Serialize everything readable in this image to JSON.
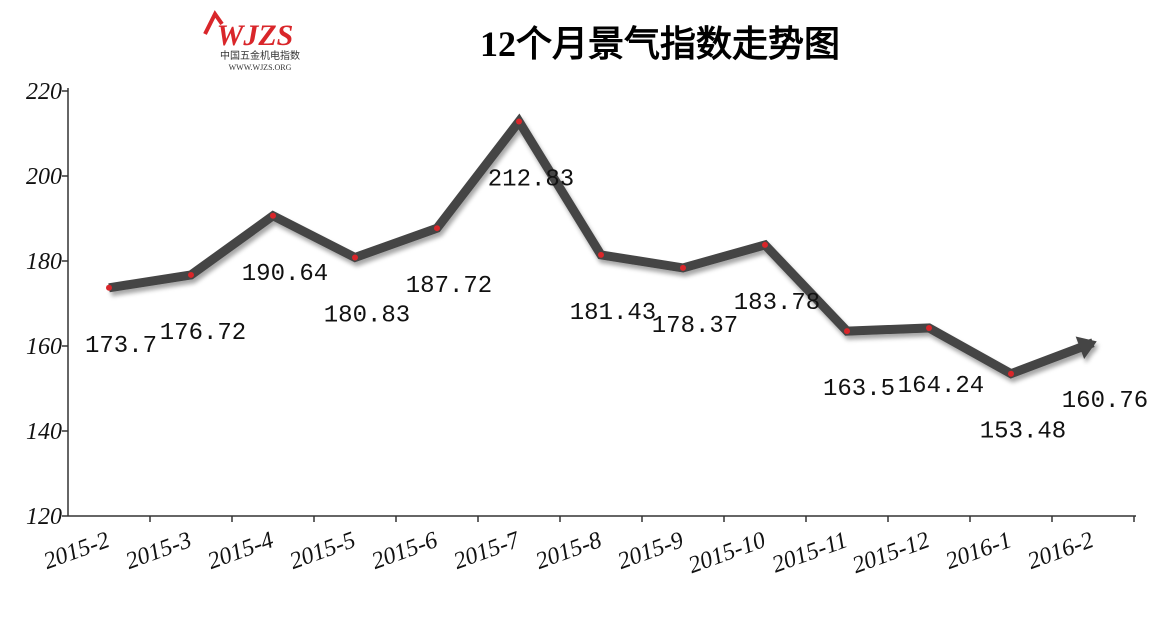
{
  "chart_data": {
    "type": "line",
    "title": "12个月景气指数走势图",
    "logo": {
      "mark": "WJZS",
      "name": "中国五金机电指数",
      "url": "WWW.WJZS.ORG"
    },
    "categories": [
      "2015-2",
      "2015-3",
      "2015-4",
      "2015-5",
      "2015-6",
      "2015-7",
      "2015-8",
      "2015-9",
      "2015-10",
      "2015-11",
      "2015-12",
      "2016-1",
      "2016-2"
    ],
    "values": [
      173.7,
      176.72,
      190.64,
      180.83,
      187.72,
      212.83,
      181.43,
      178.37,
      183.78,
      163.5,
      164.24,
      153.48,
      160.76
    ],
    "color": "#444444",
    "marker_color": "#d9262a",
    "ylim": [
      120,
      220
    ],
    "yticks": [
      120,
      140,
      160,
      180,
      200,
      220
    ]
  }
}
